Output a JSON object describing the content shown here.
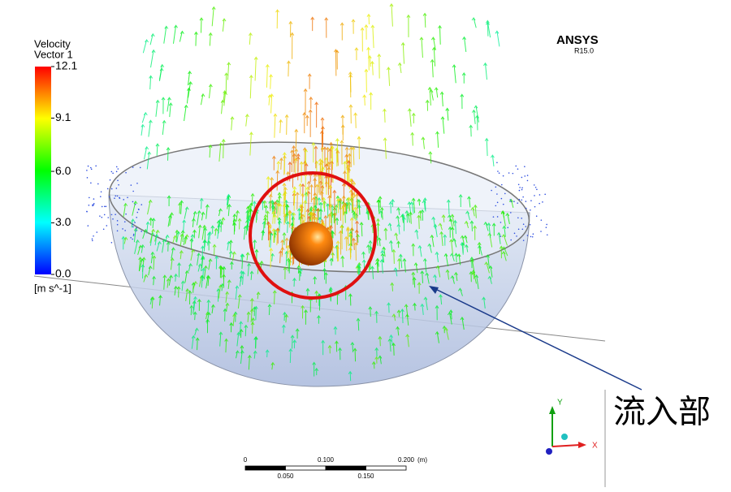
{
  "legend": {
    "title": [
      "Velocity",
      "Vector 1"
    ],
    "unit": "[m s^-1]",
    "ticks": [
      12.1,
      9.1,
      {
        "value": 6,
        "label": "6.0"
      },
      {
        "value": 3,
        "label": "3.0"
      },
      {
        "value": 0,
        "label": "0.0"
      }
    ]
  },
  "brand": {
    "name": "ANSYS",
    "version": "R15.0"
  },
  "annotation": "流入部",
  "scale_bar": {
    "unit": "(m)",
    "top_ticks": [
      0,
      {
        "value": 0.1,
        "label": "0.100"
      },
      {
        "value": 0.2,
        "label": "0.200"
      }
    ],
    "bottom_ticks": [
      {
        "value": 0.05,
        "label": "0.050"
      },
      {
        "value": 0.15,
        "label": "0.150"
      }
    ]
  },
  "axes": {
    "y": "Y",
    "x": "X"
  }
}
